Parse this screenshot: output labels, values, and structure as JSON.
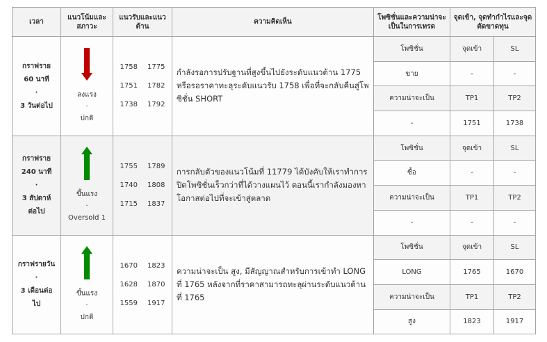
{
  "headers": {
    "time": "เวลา",
    "trend": "แนวโน้มและสภาวะ",
    "levels": "แนวรับและแนวต้าน",
    "opinion": "ความคิดเห็น",
    "position": "โพซิชั่นและความน่าจะเป็นในการเทรด",
    "points": "จุดเข้า, จุดทำกำไรและจุดตัดขาดทุน"
  },
  "sub_labels": {
    "position": "โพซิชั่น",
    "entry": "จุดเข้า",
    "sl": "SL",
    "probability": "ความน่าจะเป็น",
    "tp1": "TP1",
    "tp2": "TP2"
  },
  "colors": {
    "down": "#c00000",
    "up": "#008a00"
  },
  "rows": [
    {
      "time": [
        "กราฟราย",
        "60 นาที",
        "·",
        "3 วันต่อไป"
      ],
      "arrow": "arrow-down",
      "trend": [
        "ลงแรง",
        "·",
        "ปกติ"
      ],
      "levels": [
        [
          "1758",
          "1775"
        ],
        [
          "1751",
          "1782"
        ],
        [
          "1738",
          "1792"
        ]
      ],
      "opinion": "กำลังรอการปรับฐานที่สูงขึ้นไปยังระดับแนวต้าน 1775 หรือรอราคาทะลุระดับแนวรับ 1758 เพื่อที่จะกลับคืนสู่โพซิชั่น SHORT",
      "position": "ขาย",
      "entry": "-",
      "sl": "-",
      "probability": "-",
      "tp1": "1751",
      "tp2": "1738"
    },
    {
      "time": [
        "กราฟราย",
        "240 นาที",
        "·",
        "3 สัปดาห์",
        "ต่อไป"
      ],
      "arrow": "arrow-up",
      "trend": [
        "ขึ้นแรง",
        "·",
        "Oversold 1"
      ],
      "levels": [
        [
          "1755",
          "1789"
        ],
        [
          "1740",
          "1808"
        ],
        [
          "1715",
          "1837"
        ]
      ],
      "opinion": "การกลับตัวของแนวโน้มที่ 11779 ได้บังคับให้เราทำการปิดโพซิชั่นเร็วกว่าที่ได้วางแผนไว้ ตอนนี้เรากำลังมองหาโอกาสต่อไปที่จะเข้าสู่ตลาด",
      "position": "ซื้อ",
      "entry": "-",
      "sl": "-",
      "probability": "-",
      "tp1": "-",
      "tp2": "-"
    },
    {
      "time": [
        "กราฟรายวัน",
        "·",
        "3 เดือนต่อ",
        "ไป"
      ],
      "arrow": "arrow-up",
      "trend": [
        "ขึ้นแรง",
        "·",
        "ปกติ"
      ],
      "levels": [
        [
          "1670",
          "1823"
        ],
        [
          "1628",
          "1870"
        ],
        [
          "1559",
          "1917"
        ]
      ],
      "opinion": "ความน่าจะเป็น สูง, มีสัญญาณสำหรับการเข้าทำ LONG ที่ 1765 หลังจากที่ราคาสามารถทะลุผ่านระดับแนวต้านที่ 1765",
      "position": "LONG",
      "entry": "1765",
      "sl": "1670",
      "probability": "สูง",
      "tp1": "1823",
      "tp2": "1917"
    }
  ]
}
